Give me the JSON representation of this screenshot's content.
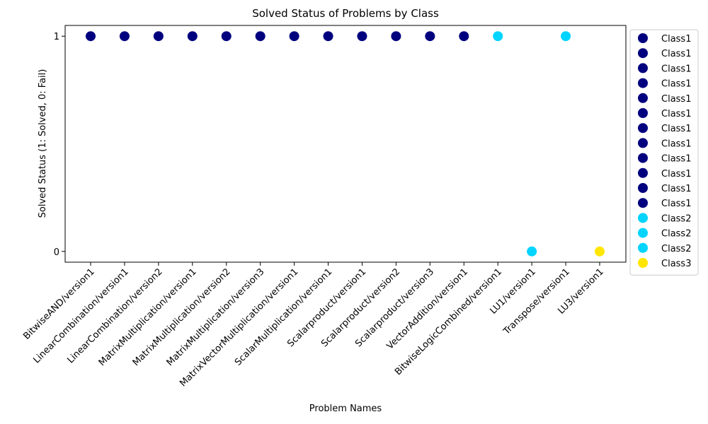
{
  "chart_data": {
    "type": "scatter",
    "title": "Solved Status of Problems by Class",
    "xlabel": "Problem Names",
    "ylabel": "Solved Status (1: Solved, 0: Fail)",
    "yticks": [
      0,
      1
    ],
    "ylim": [
      -0.05,
      1.05
    ],
    "grid": false,
    "legend_position": "outside-right",
    "class_colors": {
      "Class1": "#00007f",
      "Class2": "#00d4ff",
      "Class3": "#ffe600"
    },
    "x": [
      "BitwiseAND/version1",
      "LinearCombination/version1",
      "LinearCombination/version2",
      "MatrixMultiplication/version1",
      "MatrixMultiplication/version2",
      "MatrixMultiplication/version3",
      "MatrixVectorMultiplication/version1",
      "ScalarMultiplication/version1",
      "Scalarproduct/version1",
      "Scalarproduct/version2",
      "Scalarproduct/version3",
      "VectorAddition/version1",
      "BitwiseLogicCombined/version1",
      "LU1/version1",
      "Transpose/version1",
      "LU3/version1"
    ],
    "series": [
      {
        "name": "Class1",
        "x": "BitwiseAND/version1",
        "y": 1
      },
      {
        "name": "Class1",
        "x": "LinearCombination/version1",
        "y": 1
      },
      {
        "name": "Class1",
        "x": "LinearCombination/version2",
        "y": 1
      },
      {
        "name": "Class1",
        "x": "MatrixMultiplication/version1",
        "y": 1
      },
      {
        "name": "Class1",
        "x": "MatrixMultiplication/version2",
        "y": 1
      },
      {
        "name": "Class1",
        "x": "MatrixMultiplication/version3",
        "y": 1
      },
      {
        "name": "Class1",
        "x": "MatrixVectorMultiplication/version1",
        "y": 1
      },
      {
        "name": "Class1",
        "x": "ScalarMultiplication/version1",
        "y": 1
      },
      {
        "name": "Class1",
        "x": "Scalarproduct/version1",
        "y": 1
      },
      {
        "name": "Class1",
        "x": "Scalarproduct/version2",
        "y": 1
      },
      {
        "name": "Class1",
        "x": "Scalarproduct/version3",
        "y": 1
      },
      {
        "name": "Class1",
        "x": "VectorAddition/version1",
        "y": 1
      },
      {
        "name": "Class2",
        "x": "BitwiseLogicCombined/version1",
        "y": 1
      },
      {
        "name": "Class2",
        "x": "LU1/version1",
        "y": 0
      },
      {
        "name": "Class2",
        "x": "Transpose/version1",
        "y": 1
      },
      {
        "name": "Class3",
        "x": "LU3/version1",
        "y": 0
      }
    ]
  }
}
